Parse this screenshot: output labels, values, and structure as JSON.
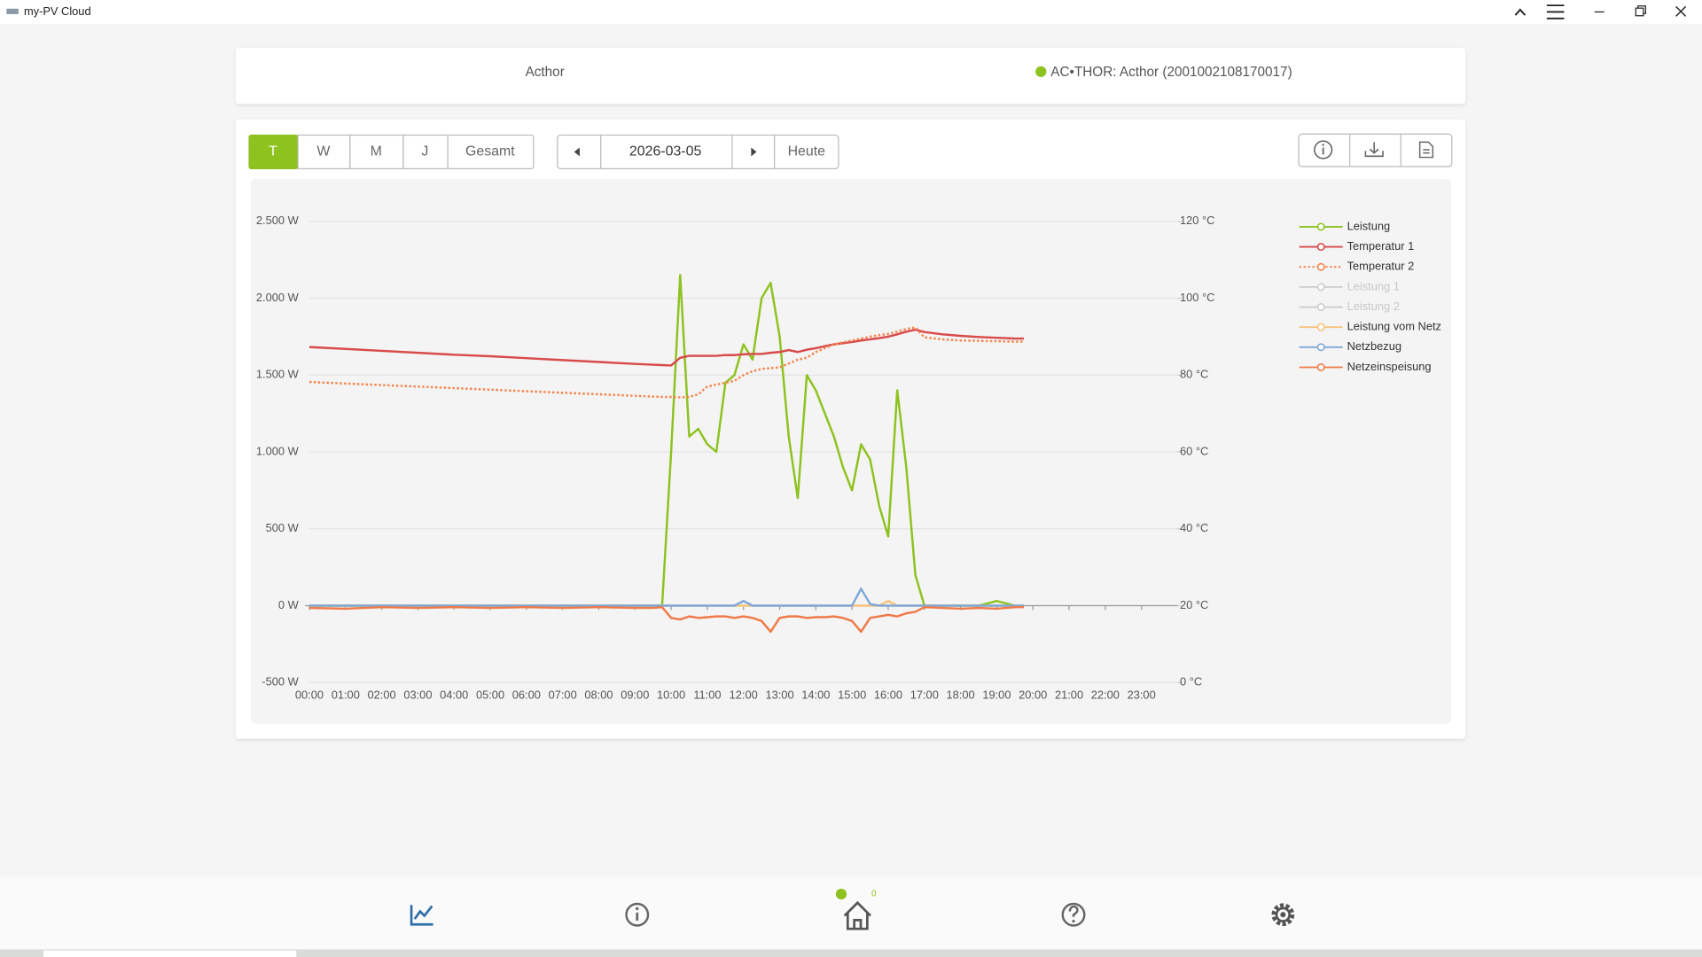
{
  "window": {
    "title": "my-PV Cloud"
  },
  "header": {
    "site": "Acthor",
    "device": "AC•THOR: Acthor (2001002108170017)"
  },
  "toolbar": {
    "periods": [
      "T",
      "W",
      "M",
      "J",
      "Gesamt"
    ],
    "date": "2026-03-05",
    "today": "Heute"
  },
  "nav": {
    "badge": 0
  },
  "chart_data": {
    "type": "line",
    "legend": "right",
    "grid": true,
    "x": [
      0,
      1,
      2,
      3,
      4,
      5,
      6,
      7,
      8,
      9,
      9.5,
      9.75,
      10,
      10.25,
      10.5,
      10.75,
      11,
      11.25,
      11.5,
      11.75,
      12,
      12.25,
      12.5,
      12.75,
      13,
      13.25,
      13.5,
      13.75,
      14,
      14.25,
      14.5,
      14.75,
      15,
      15.25,
      15.5,
      15.75,
      16,
      16.25,
      16.5,
      16.75,
      17,
      17.5,
      18,
      18.5,
      19,
      19.5,
      19.75
    ],
    "xlim": [
      0,
      24
    ],
    "xticks": [
      {
        "value": 0,
        "label": "00:00"
      },
      {
        "value": 1,
        "label": "01:00"
      },
      {
        "value": 2,
        "label": "02:00"
      },
      {
        "value": 3,
        "label": "03:00"
      },
      {
        "value": 4,
        "label": "04:00"
      },
      {
        "value": 5,
        "label": "05:00"
      },
      {
        "value": 6,
        "label": "06:00"
      },
      {
        "value": 7,
        "label": "07:00"
      },
      {
        "value": 8,
        "label": "08:00"
      },
      {
        "value": 9,
        "label": "09:00"
      },
      {
        "value": 10,
        "label": "10:00"
      },
      {
        "value": 11,
        "label": "11:00"
      },
      {
        "value": 12,
        "label": "12:00"
      },
      {
        "value": 13,
        "label": "13:00"
      },
      {
        "value": 14,
        "label": "14:00"
      },
      {
        "value": 15,
        "label": "15:00"
      },
      {
        "value": 16,
        "label": "16:00"
      },
      {
        "value": 17,
        "label": "17:00"
      },
      {
        "value": 18,
        "label": "18:00"
      },
      {
        "value": 19,
        "label": "19:00"
      },
      {
        "value": 20,
        "label": "20:00"
      },
      {
        "value": 21,
        "label": "21:00"
      },
      {
        "value": 22,
        "label": "22:00"
      },
      {
        "value": 23,
        "label": "23:00"
      }
    ],
    "ylim": [
      -500,
      2500
    ],
    "yticks": [
      {
        "value": -500,
        "label": "-500 W"
      },
      {
        "value": 0,
        "label": "0 W"
      },
      {
        "value": 500,
        "label": "500 W"
      },
      {
        "value": 1000,
        "label": "1.000 W"
      },
      {
        "value": 1500,
        "label": "1.500 W"
      },
      {
        "value": 2000,
        "label": "2.000 W"
      },
      {
        "value": 2500,
        "label": "2.500 W"
      }
    ],
    "y2lim": [
      0,
      120
    ],
    "y2ticks": [
      {
        "value": 0,
        "label": "0 °C"
      },
      {
        "value": 20,
        "label": "20 °C"
      },
      {
        "value": 40,
        "label": "40 °C"
      },
      {
        "value": 60,
        "label": "60 °C"
      },
      {
        "value": 80,
        "label": "80 °C"
      },
      {
        "value": 100,
        "label": "100 °C"
      },
      {
        "value": 120,
        "label": "120 °C"
      }
    ],
    "series": [
      {
        "name": "Leistung",
        "color": "#8dc21f",
        "values": [
          0,
          0,
          0,
          0,
          0,
          0,
          0,
          0,
          0,
          0,
          0,
          0,
          1000,
          2150,
          1100,
          1150,
          1050,
          1000,
          1450,
          1500,
          1700,
          1600,
          2000,
          2100,
          1750,
          1100,
          700,
          1500,
          1400,
          1250,
          1100,
          900,
          750,
          1050,
          950,
          650,
          450,
          1400,
          900,
          200,
          0,
          0,
          0,
          0,
          30,
          0,
          0
        ]
      },
      {
        "name": "Temperatur 1",
        "color": "#d94a4a",
        "axis": "y2",
        "values": [
          87.3,
          86.8,
          86.3,
          85.8,
          85.3,
          84.9,
          84.4,
          83.9,
          83.4,
          82.9,
          82.7,
          82.6,
          82.5,
          84.5,
          85,
          85,
          85,
          85,
          85.2,
          85.2,
          85.4,
          85.5,
          85.5,
          85.8,
          86,
          86.5,
          86,
          86.6,
          87,
          87.5,
          88,
          88.3,
          88.6,
          89,
          89.3,
          89.6,
          90,
          90.6,
          91.3,
          91.8,
          91.2,
          90.6,
          90.2,
          89.9,
          89.7,
          89.5,
          89.5
        ]
      },
      {
        "name": "Temperatur 2",
        "color": "#f5834a",
        "axis": "y2",
        "style": "dotted",
        "values": [
          78.2,
          77.8,
          77.4,
          77,
          76.6,
          76.2,
          75.8,
          75.4,
          75,
          74.6,
          74.4,
          74.3,
          74.3,
          74.2,
          74.3,
          75,
          77,
          77.5,
          78,
          78.5,
          80,
          81,
          81.6,
          81.8,
          82,
          83,
          84,
          84.5,
          86,
          87,
          88,
          88.5,
          89,
          89.5,
          90,
          90.4,
          90.7,
          91.3,
          92,
          92.4,
          89.8,
          89.3,
          89,
          88.9,
          88.8,
          88.7,
          88.7
        ]
      },
      {
        "name": "Leistung 1",
        "color": "#cccccc",
        "visible": false
      },
      {
        "name": "Leistung 2",
        "color": "#cccccc",
        "visible": false
      },
      {
        "name": "Leistung vom Netz",
        "color": "#f7c37b",
        "values": [
          0,
          0,
          0,
          0,
          0,
          0,
          0,
          0,
          0,
          0,
          0,
          0,
          0,
          0,
          0,
          0,
          0,
          0,
          0,
          0,
          0,
          0,
          0,
          0,
          0,
          0,
          0,
          0,
          0,
          0,
          0,
          0,
          0,
          0,
          0,
          0,
          30,
          0,
          0,
          0,
          0,
          0,
          0,
          0,
          0,
          0,
          0
        ]
      },
      {
        "name": "Netzbezug",
        "color": "#7fa8d8",
        "values": [
          0,
          0,
          0,
          0,
          0,
          0,
          0,
          0,
          0,
          0,
          0,
          0,
          0,
          0,
          0,
          0,
          0,
          0,
          0,
          0,
          30,
          0,
          0,
          0,
          0,
          0,
          0,
          0,
          0,
          0,
          0,
          0,
          0,
          110,
          10,
          0,
          0,
          0,
          0,
          0,
          0,
          0,
          0,
          0,
          0,
          0,
          0
        ]
      },
      {
        "name": "Netzeinspeisung",
        "color": "#f07a48",
        "values": [
          -15,
          -20,
          -10,
          -15,
          -10,
          -15,
          -10,
          -15,
          -10,
          -15,
          -15,
          -10,
          -80,
          -90,
          -70,
          -80,
          -75,
          -70,
          -70,
          -80,
          -70,
          -80,
          -100,
          -170,
          -80,
          -70,
          -70,
          -80,
          -75,
          -75,
          -70,
          -80,
          -100,
          -170,
          -80,
          -70,
          -60,
          -70,
          -50,
          -40,
          -10,
          -15,
          -20,
          -15,
          -20,
          -10,
          -10
        ]
      }
    ]
  }
}
